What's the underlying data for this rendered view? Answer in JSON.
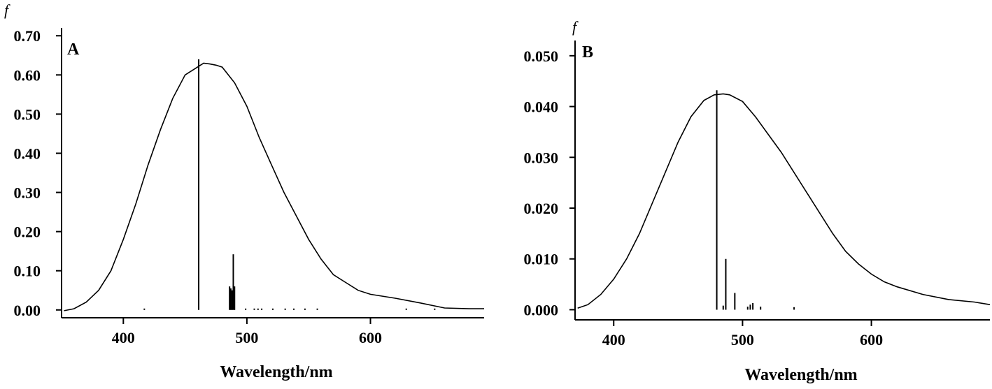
{
  "chart_data": [
    {
      "type": "line",
      "panel_label": "A",
      "ylabel": "f",
      "xlabel": "Wavelength/nm",
      "xlim": [
        350,
        692
      ],
      "ylim": [
        -0.02,
        0.72
      ],
      "x_ticks": [
        400,
        500,
        600
      ],
      "x_tick_labels": [
        "400",
        "500",
        "600"
      ],
      "y_ticks": [
        0.0,
        0.1,
        0.2,
        0.3,
        0.4,
        0.5,
        0.6,
        0.7
      ],
      "y_tick_labels": [
        "0.00",
        "0.10",
        "0.20",
        "0.30",
        "0.40",
        "0.50",
        "0.60",
        "0.70"
      ],
      "grid": false,
      "series": [
        {
          "kind": "curve",
          "x": [
            352,
            360,
            370,
            380,
            390,
            400,
            410,
            420,
            430,
            440,
            450,
            460,
            465,
            470,
            475,
            480,
            490,
            500,
            510,
            520,
            530,
            540,
            550,
            560,
            570,
            580,
            590,
            600,
            620,
            640,
            660,
            680,
            692
          ],
          "values": [
            -0.002,
            0.003,
            0.02,
            0.05,
            0.1,
            0.18,
            0.27,
            0.37,
            0.46,
            0.54,
            0.6,
            0.62,
            0.63,
            0.628,
            0.625,
            0.62,
            0.58,
            0.52,
            0.44,
            0.37,
            0.3,
            0.24,
            0.18,
            0.13,
            0.09,
            0.07,
            0.05,
            0.04,
            0.03,
            0.018,
            0.005,
            0.003,
            0.003
          ]
        },
        {
          "kind": "sticks",
          "x": [
            417,
            461,
            486,
            487,
            488,
            489,
            490,
            499,
            506,
            509,
            512,
            521,
            531,
            538,
            547,
            557,
            629,
            652
          ],
          "values": [
            0.002,
            0.64,
            0.06,
            0.055,
            0.05,
            0.142,
            0.06,
            0.002,
            0.002,
            0.003,
            0.002,
            0.002,
            0.002,
            0.002,
            0.002,
            0.002,
            0.002,
            0.002
          ]
        }
      ]
    },
    {
      "type": "line",
      "panel_label": "B",
      "ylabel": "f",
      "xlabel": "Wavelength/nm",
      "xlim": [
        370,
        692
      ],
      "ylim": [
        -0.002,
        0.053
      ],
      "x_ticks": [
        400,
        500,
        600
      ],
      "x_tick_labels": [
        "400",
        "500",
        "600"
      ],
      "y_ticks": [
        0.0,
        0.01,
        0.02,
        0.03,
        0.04,
        0.05
      ],
      "y_tick_labels": [
        "0.000",
        "0.010",
        "0.020",
        "0.030",
        "0.040",
        "0.050"
      ],
      "grid": false,
      "series": [
        {
          "kind": "curve",
          "x": [
            372,
            380,
            390,
            400,
            410,
            420,
            430,
            440,
            450,
            460,
            470,
            478,
            485,
            490,
            500,
            510,
            520,
            530,
            540,
            550,
            560,
            570,
            580,
            590,
            600,
            610,
            620,
            640,
            660,
            680,
            692
          ],
          "values": [
            0.0003,
            0.001,
            0.003,
            0.006,
            0.01,
            0.015,
            0.021,
            0.027,
            0.033,
            0.038,
            0.0412,
            0.0423,
            0.0425,
            0.0423,
            0.041,
            0.038,
            0.0345,
            0.031,
            0.027,
            0.023,
            0.019,
            0.015,
            0.0115,
            0.009,
            0.007,
            0.0055,
            0.0045,
            0.003,
            0.002,
            0.0015,
            0.001
          ]
        },
        {
          "kind": "sticks",
          "x": [
            480,
            485,
            487,
            494,
            504,
            506,
            508,
            514,
            540
          ],
          "values": [
            0.0432,
            0.0008,
            0.01,
            0.0033,
            0.0006,
            0.001,
            0.0013,
            0.0006,
            0.0005
          ]
        }
      ]
    }
  ]
}
